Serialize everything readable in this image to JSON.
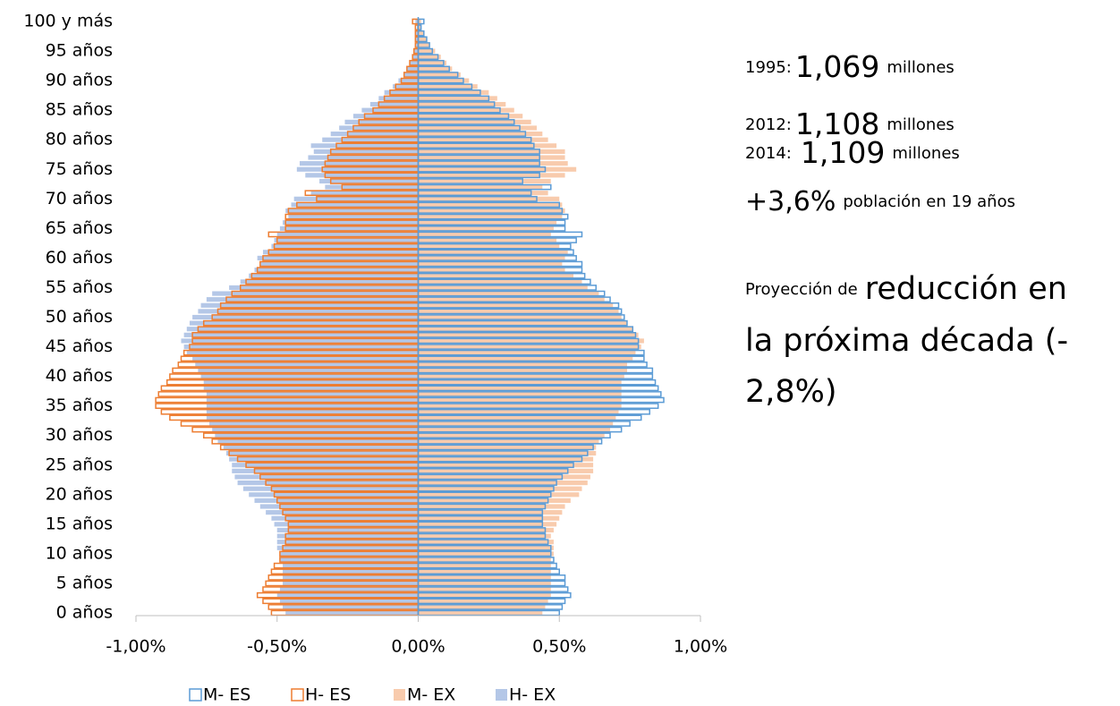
{
  "chart_data": {
    "type": "pyramid",
    "categories": [
      "0 años",
      null,
      null,
      null,
      null,
      "5 años",
      null,
      null,
      null,
      null,
      "10 años",
      null,
      null,
      null,
      null,
      "15 años",
      null,
      null,
      null,
      null,
      "20 años",
      null,
      null,
      null,
      null,
      "25 años",
      null,
      null,
      null,
      null,
      "30 años",
      null,
      null,
      null,
      null,
      "35 años",
      null,
      null,
      null,
      null,
      "40 años",
      null,
      null,
      null,
      null,
      "45 años",
      null,
      null,
      null,
      null,
      "50 años",
      null,
      null,
      null,
      null,
      "55 años",
      null,
      null,
      null,
      null,
      "60 años",
      null,
      null,
      null,
      null,
      "65 años",
      null,
      null,
      null,
      null,
      "70 años",
      null,
      null,
      null,
      null,
      "75 años",
      null,
      null,
      null,
      null,
      "80 años",
      null,
      null,
      null,
      null,
      "85 años",
      null,
      null,
      null,
      null,
      "90 años",
      null,
      null,
      null,
      null,
      "95 años",
      null,
      null,
      null,
      null,
      "100 y más"
    ],
    "xlim": [
      -1,
      1
    ],
    "xticks": [
      {
        "value": -1,
        "label": "-1,00%"
      },
      {
        "value": -0.5,
        "label": "-0,50%"
      },
      {
        "value": 0,
        "label": "0,00%"
      },
      {
        "value": 0.5,
        "label": "0,50%"
      },
      {
        "value": 1,
        "label": "1,00%"
      }
    ],
    "series": [
      {
        "name": "M- ES",
        "color": "#5b9bd5",
        "style": "outline",
        "values": [
          0.5,
          0.51,
          0.52,
          0.54,
          0.53,
          0.52,
          0.52,
          0.5,
          0.49,
          0.48,
          0.47,
          0.47,
          0.46,
          0.45,
          0.45,
          0.44,
          0.44,
          0.44,
          0.45,
          0.46,
          0.47,
          0.48,
          0.49,
          0.51,
          0.53,
          0.55,
          0.58,
          0.6,
          0.62,
          0.65,
          0.68,
          0.72,
          0.75,
          0.79,
          0.82,
          0.85,
          0.87,
          0.86,
          0.85,
          0.84,
          0.83,
          0.83,
          0.81,
          0.8,
          0.8,
          0.78,
          0.78,
          0.77,
          0.76,
          0.74,
          0.73,
          0.72,
          0.71,
          0.68,
          0.66,
          0.63,
          0.61,
          0.59,
          0.58,
          0.58,
          0.56,
          0.55,
          0.54,
          0.56,
          0.58,
          0.52,
          0.52,
          0.53,
          0.51,
          0.5,
          0.42,
          0.4,
          0.47,
          0.37,
          0.43,
          0.45,
          0.43,
          0.43,
          0.43,
          0.41,
          0.4,
          0.38,
          0.36,
          0.34,
          0.32,
          0.29,
          0.27,
          0.25,
          0.22,
          0.19,
          0.16,
          0.14,
          0.11,
          0.09,
          0.07,
          0.05,
          0.04,
          0.03,
          0.02,
          0.01,
          0.02
        ]
      },
      {
        "name": "H- ES",
        "color": "#ed7d31",
        "style": "outline",
        "values": [
          -0.52,
          -0.53,
          -0.55,
          -0.57,
          -0.55,
          -0.54,
          -0.53,
          -0.52,
          -0.51,
          -0.49,
          -0.49,
          -0.48,
          -0.47,
          -0.47,
          -0.46,
          -0.46,
          -0.47,
          -0.48,
          -0.49,
          -0.5,
          -0.51,
          -0.52,
          -0.54,
          -0.56,
          -0.58,
          -0.61,
          -0.64,
          -0.67,
          -0.7,
          -0.73,
          -0.76,
          -0.8,
          -0.84,
          -0.88,
          -0.91,
          -0.93,
          -0.93,
          -0.92,
          -0.91,
          -0.89,
          -0.88,
          -0.87,
          -0.85,
          -0.84,
          -0.83,
          -0.81,
          -0.8,
          -0.8,
          -0.78,
          -0.76,
          -0.73,
          -0.71,
          -0.7,
          -0.68,
          -0.66,
          -0.63,
          -0.61,
          -0.59,
          -0.57,
          -0.56,
          -0.55,
          -0.53,
          -0.51,
          -0.5,
          -0.53,
          -0.47,
          -0.47,
          -0.47,
          -0.46,
          -0.43,
          -0.36,
          -0.4,
          -0.27,
          -0.31,
          -0.33,
          -0.34,
          -0.33,
          -0.32,
          -0.31,
          -0.29,
          -0.27,
          -0.25,
          -0.23,
          -0.21,
          -0.19,
          -0.16,
          -0.14,
          -0.12,
          -0.1,
          -0.08,
          -0.06,
          -0.05,
          -0.04,
          -0.03,
          -0.02,
          -0.015,
          -0.01,
          -0.01,
          -0.01,
          -0.01,
          -0.02
        ]
      },
      {
        "name": "M- EX",
        "color": "#f8cbad",
        "style": "fill",
        "values": [
          0.44,
          0.45,
          0.46,
          0.47,
          0.47,
          0.47,
          0.47,
          0.47,
          0.47,
          0.47,
          0.48,
          0.48,
          0.48,
          0.47,
          0.48,
          0.49,
          0.5,
          0.51,
          0.52,
          0.54,
          0.57,
          0.58,
          0.6,
          0.61,
          0.62,
          0.62,
          0.62,
          0.63,
          0.63,
          0.64,
          0.66,
          0.68,
          0.69,
          0.7,
          0.71,
          0.72,
          0.72,
          0.72,
          0.72,
          0.72,
          0.73,
          0.74,
          0.74,
          0.76,
          0.77,
          0.79,
          0.8,
          0.78,
          0.76,
          0.74,
          0.72,
          0.71,
          0.69,
          0.66,
          0.64,
          0.6,
          0.58,
          0.55,
          0.52,
          0.51,
          0.52,
          0.53,
          0.5,
          0.49,
          0.47,
          0.48,
          0.49,
          0.51,
          0.52,
          0.51,
          0.5,
          0.46,
          0.44,
          0.47,
          0.52,
          0.56,
          0.53,
          0.52,
          0.52,
          0.49,
          0.46,
          0.44,
          0.42,
          0.4,
          0.37,
          0.34,
          0.31,
          0.28,
          0.25,
          0.21,
          0.18,
          0.15,
          0.12,
          0.1,
          0.08,
          0.06,
          0.04,
          0.03,
          0.02,
          0.01,
          0.01
        ]
      },
      {
        "name": "H- EX",
        "color": "#b4c7e7",
        "style": "fill",
        "values": [
          -0.47,
          -0.48,
          -0.49,
          -0.5,
          -0.49,
          -0.48,
          -0.48,
          -0.48,
          -0.48,
          -0.49,
          -0.49,
          -0.5,
          -0.5,
          -0.5,
          -0.5,
          -0.51,
          -0.52,
          -0.54,
          -0.56,
          -0.58,
          -0.6,
          -0.62,
          -0.64,
          -0.65,
          -0.66,
          -0.66,
          -0.67,
          -0.68,
          -0.69,
          -0.71,
          -0.72,
          -0.73,
          -0.74,
          -0.75,
          -0.75,
          -0.75,
          -0.75,
          -0.75,
          -0.76,
          -0.76,
          -0.77,
          -0.78,
          -0.79,
          -0.8,
          -0.82,
          -0.83,
          -0.84,
          -0.83,
          -0.82,
          -0.81,
          -0.8,
          -0.78,
          -0.77,
          -0.75,
          -0.73,
          -0.67,
          -0.63,
          -0.6,
          -0.58,
          -0.56,
          -0.57,
          -0.55,
          -0.52,
          -0.51,
          -0.5,
          -0.49,
          -0.48,
          -0.46,
          -0.47,
          -0.45,
          -0.44,
          -0.38,
          -0.33,
          -0.35,
          -0.4,
          -0.43,
          -0.42,
          -0.39,
          -0.37,
          -0.38,
          -0.34,
          -0.31,
          -0.28,
          -0.26,
          -0.23,
          -0.2,
          -0.17,
          -0.14,
          -0.12,
          -0.09,
          -0.07,
          -0.05,
          -0.04,
          -0.03,
          -0.02,
          -0.015,
          -0.01,
          -0.01,
          -0.01,
          -0.005,
          -0.01
        ]
      }
    ],
    "legend": "bottom",
    "annotations": {
      "years": [
        {
          "label": "1995:",
          "value": "1,069",
          "unit": "millones"
        },
        {
          "label": "2012:",
          "value": "1,108",
          "unit": "millones"
        },
        {
          "label": "2014:",
          "value": "1,109",
          "unit": "millones"
        }
      ],
      "growth": {
        "value": "+3,6%",
        "text": "población en 19 años"
      },
      "projection": {
        "intro": "Proyección de",
        "lines": [
          "reducción en",
          "la próxima década (-",
          "2,8%)"
        ]
      }
    }
  }
}
